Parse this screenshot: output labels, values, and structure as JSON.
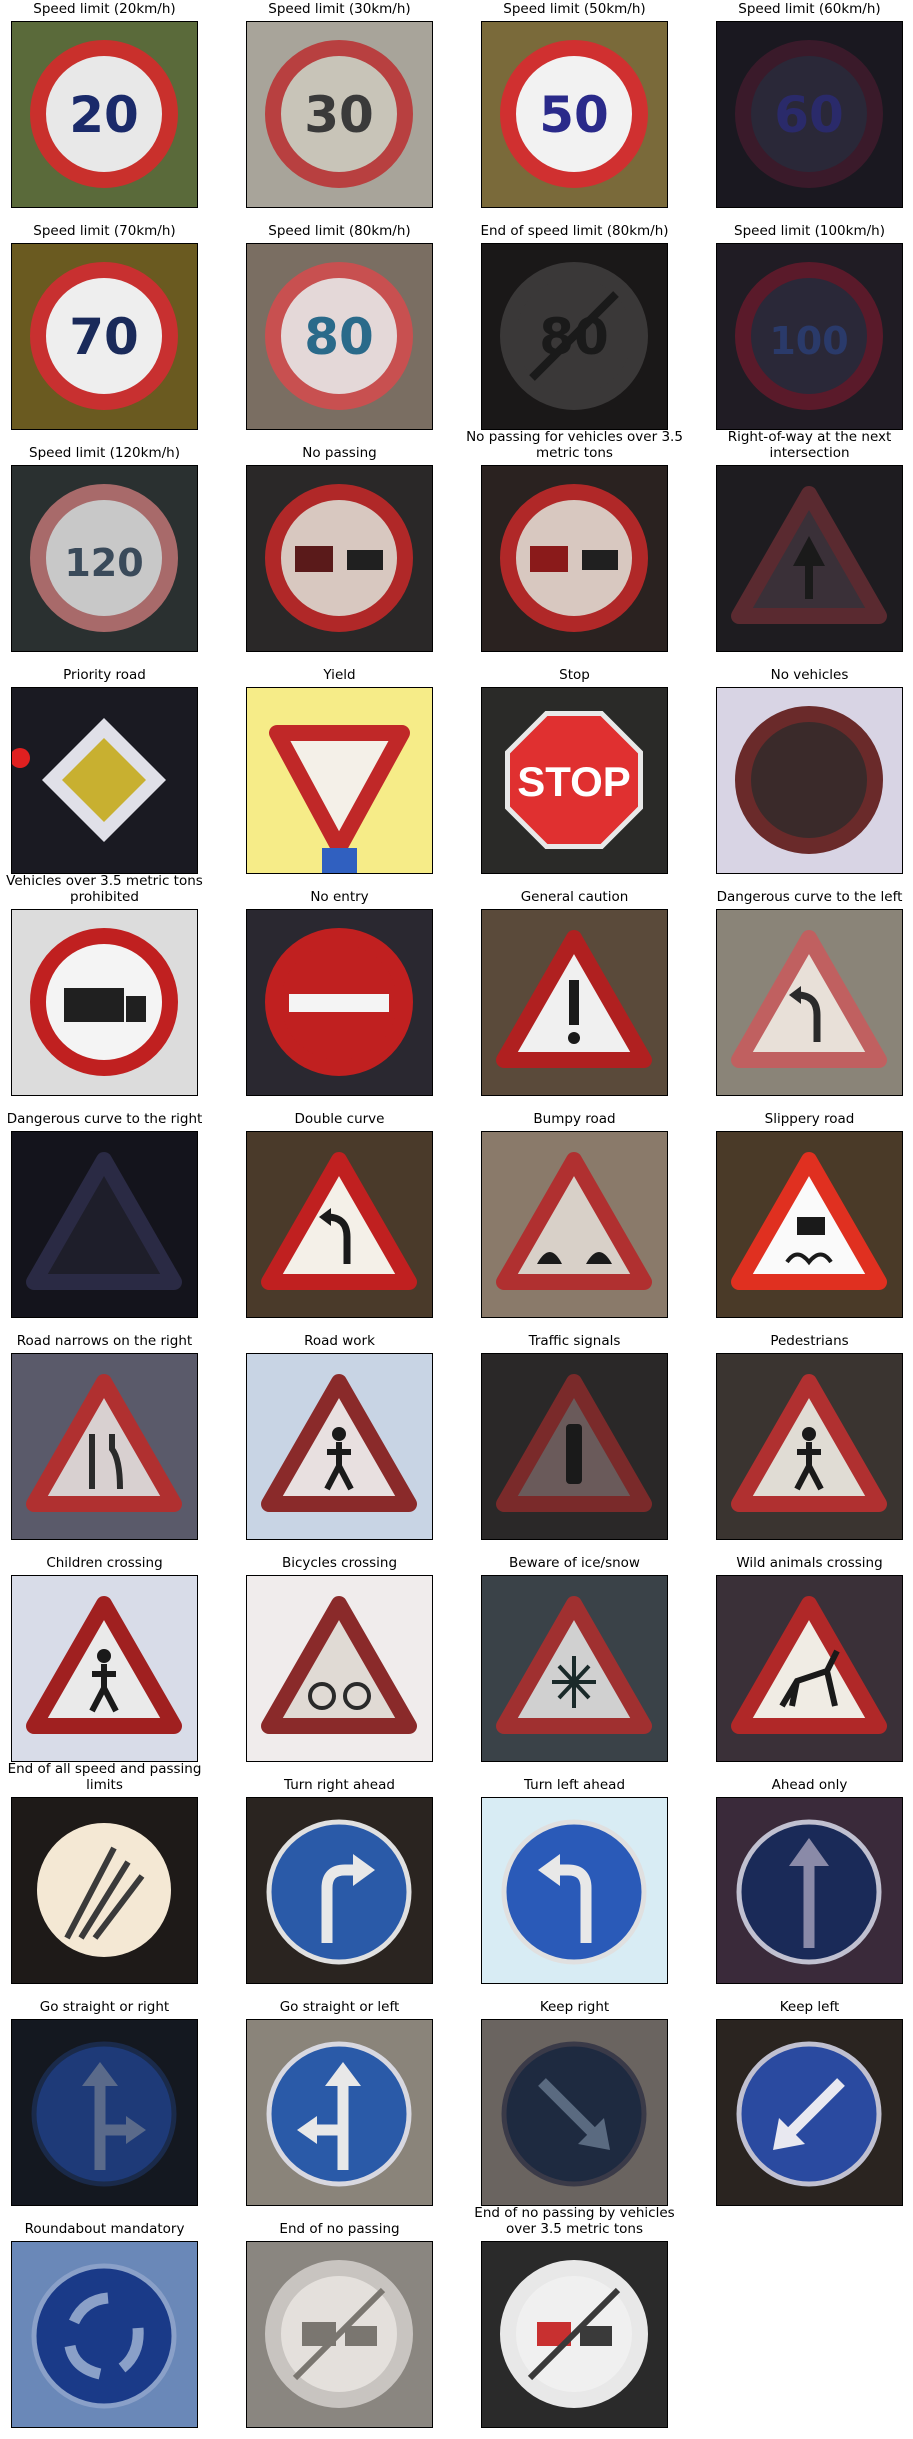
{
  "figure": {
    "panels": [
      {
        "title": "Speed limit (20km/h)",
        "sign": {
          "shape": "circle",
          "text": "20",
          "bg": "#5a6a3a",
          "ring": "#c9302c",
          "face": "#e8e8e8",
          "ink": "#1a2a6a"
        }
      },
      {
        "title": "Speed limit (30km/h)",
        "sign": {
          "shape": "circle",
          "text": "30",
          "bg": "#a8a49a",
          "ring": "#b84040",
          "face": "#c8c4b8",
          "ink": "#3a3a3a"
        }
      },
      {
        "title": "Speed limit (50km/h)",
        "sign": {
          "shape": "circle",
          "text": "50",
          "bg": "#7a6a3a",
          "ring": "#d03030",
          "face": "#f2f2f2",
          "ink": "#2a2a8a"
        }
      },
      {
        "title": "Speed limit (60km/h)",
        "sign": {
          "shape": "circle",
          "text": "60",
          "bg": "#1a1820",
          "ring": "#3a1a2a",
          "face": "#2a2838",
          "ink": "#2a2a6a"
        }
      },
      {
        "title": "Speed limit (70km/h)",
        "sign": {
          "shape": "circle",
          "text": "70",
          "bg": "#6a5a20",
          "ring": "#c83030",
          "face": "#eeeeee",
          "ink": "#1a2a5a"
        }
      },
      {
        "title": "Speed limit (80km/h)",
        "sign": {
          "shape": "circle",
          "text": "80",
          "bg": "#7a6e62",
          "ring": "#c85050",
          "face": "#e4d8d8",
          "ink": "#2a6a8a"
        }
      },
      {
        "title": "End of speed limit (80km/h)",
        "sign": {
          "shape": "circle-end",
          "text": "80",
          "bg": "#1a1818",
          "ring": "#3a3838",
          "face": "#3a3838",
          "ink": "#1a1a1a"
        }
      },
      {
        "title": "Speed limit (100km/h)",
        "sign": {
          "shape": "circle",
          "text": "100",
          "bg": "#201c24",
          "ring": "#5a1a2a",
          "face": "#2a2838",
          "ink": "#2a3a6a"
        }
      },
      {
        "title": "Speed limit (120km/h)",
        "sign": {
          "shape": "circle",
          "text": "120",
          "bg": "#2a3030",
          "ring": "#a86a6a",
          "face": "#c8c8c8",
          "ink": "#3a4a5a"
        }
      },
      {
        "title": "No passing",
        "sign": {
          "shape": "nopassing",
          "text": "",
          "bg": "#2a2828",
          "ring": "#b02828",
          "face": "#d8c8c0",
          "ink": "#5a1a1a"
        }
      },
      {
        "title": "No passing for vehicles over 3.5 metric tons",
        "sign": {
          "shape": "nopassing-truck",
          "text": "",
          "bg": "#2a2220",
          "ring": "#b02828",
          "face": "#d8c8c0",
          "ink": "#8a1a1a"
        }
      },
      {
        "title": "Right-of-way at the next intersection",
        "sign": {
          "shape": "triangle-arrow",
          "text": "",
          "bg": "#1e1c20",
          "ring": "#5a2a30",
          "face": "#3a3038",
          "ink": "#1a1a1a"
        }
      },
      {
        "title": "Priority road",
        "sign": {
          "shape": "diamond",
          "text": "",
          "bg": "#1a1a22",
          "ring": "#e0e0e8",
          "face": "#c8b030",
          "ink": "#e02020"
        }
      },
      {
        "title": "Yield",
        "sign": {
          "shape": "yield",
          "text": "",
          "bg": "#f6ec88",
          "ring": "#c02828",
          "face": "#f4f0e8",
          "ink": "#3060c0"
        }
      },
      {
        "title": "Stop",
        "sign": {
          "shape": "octagon",
          "text": "STOP",
          "bg": "#2a2a28",
          "ring": "#e8e8e8",
          "face": "#e03030",
          "ink": "#ffffff"
        }
      },
      {
        "title": "No vehicles",
        "sign": {
          "shape": "circle",
          "text": "",
          "bg": "#d8d4e4",
          "ring": "#6a2a2a",
          "face": "#3a2a2a",
          "ink": "#3a2a2a"
        }
      },
      {
        "title": "Vehicles over 3.5 metric tons prohibited",
        "sign": {
          "shape": "truck",
          "text": "",
          "bg": "#dcdcdc",
          "ring": "#c02020",
          "face": "#f4f4f4",
          "ink": "#202020"
        }
      },
      {
        "title": "No entry",
        "sign": {
          "shape": "noentry",
          "text": "",
          "bg": "#2a2830",
          "ring": "#c02020",
          "face": "#c02020",
          "ink": "#f4f4f4"
        }
      },
      {
        "title": "General caution",
        "sign": {
          "shape": "triangle-excl",
          "text": "!",
          "bg": "#5a4a3a",
          "ring": "#b02020",
          "face": "#f0f0f0",
          "ink": "#1a1a1a"
        }
      },
      {
        "title": "Dangerous curve to the left",
        "sign": {
          "shape": "triangle-curve-left",
          "text": "",
          "bg": "#8a8478",
          "ring": "#c06060",
          "face": "#e8e0d8",
          "ink": "#2a2a2a"
        }
      },
      {
        "title": "Dangerous curve to the right",
        "sign": {
          "shape": "triangle-dim",
          "text": "",
          "bg": "#14141c",
          "ring": "#2a2a44",
          "face": "#1e1e2a",
          "ink": "#1a1a1a"
        }
      },
      {
        "title": "Double curve",
        "sign": {
          "shape": "triangle-double",
          "text": "",
          "bg": "#4a3a2a",
          "ring": "#c02020",
          "face": "#f4f0e8",
          "ink": "#1a1a1a"
        }
      },
      {
        "title": "Bumpy road",
        "sign": {
          "shape": "triangle-bumpy",
          "text": "",
          "bg": "#8a7a6a",
          "ring": "#b03030",
          "face": "#d8d0c8",
          "ink": "#1a1a1a"
        }
      },
      {
        "title": "Slippery road",
        "sign": {
          "shape": "triangle-slip",
          "text": "",
          "bg": "#4a3a28",
          "ring": "#e03020",
          "face": "#fafafa",
          "ink": "#1a1a1a"
        }
      },
      {
        "title": "Road narrows on the right",
        "sign": {
          "shape": "triangle-narrow",
          "text": "",
          "bg": "#5a5a6a",
          "ring": "#b03030",
          "face": "#d8d0d0",
          "ink": "#2a2a2a"
        }
      },
      {
        "title": "Road work",
        "sign": {
          "shape": "triangle-work",
          "text": "",
          "bg": "#c8d4e4",
          "ring": "#8a2a2a",
          "face": "#e8e0e0",
          "ink": "#1a1a1a"
        }
      },
      {
        "title": "Traffic signals",
        "sign": {
          "shape": "triangle-signals",
          "text": "",
          "bg": "#2a2828",
          "ring": "#7a2a2a",
          "face": "#6a5a5a",
          "ink": "#1a1a1a"
        }
      },
      {
        "title": "Pedestrians",
        "sign": {
          "shape": "triangle-ped",
          "text": "",
          "bg": "#3a3430",
          "ring": "#b03030",
          "face": "#e0dcd4",
          "ink": "#1a1a1a"
        }
      },
      {
        "title": "Children crossing",
        "sign": {
          "shape": "triangle-children",
          "text": "",
          "bg": "#d8dce8",
          "ring": "#a02020",
          "face": "#eaeaea",
          "ink": "#1a1a1a"
        }
      },
      {
        "title": "Bicycles crossing",
        "sign": {
          "shape": "triangle-bike",
          "text": "",
          "bg": "#f0ecec",
          "ring": "#8a2a2a",
          "face": "#e0dad4",
          "ink": "#2a2a2a"
        }
      },
      {
        "title": "Beware of ice/snow",
        "sign": {
          "shape": "triangle-snow",
          "text": "",
          "bg": "#3a4248",
          "ring": "#a03030",
          "face": "#d0d0d0",
          "ink": "#1a2a2a"
        }
      },
      {
        "title": "Wild animals crossing",
        "sign": {
          "shape": "triangle-deer",
          "text": "",
          "bg": "#3a3038",
          "ring": "#b02828",
          "face": "#f0ece4",
          "ink": "#1a1a1a"
        }
      },
      {
        "title": "End of all speed and passing limits",
        "sign": {
          "shape": "end-all",
          "text": "",
          "bg": "#1e1a18",
          "ring": "#f4e8d4",
          "face": "#f4e8d4",
          "ink": "#3a3a3a"
        }
      },
      {
        "title": "Turn right ahead",
        "sign": {
          "shape": "blue-turn-right",
          "text": "",
          "bg": "#2a2420",
          "ring": "#e0e0e0",
          "face": "#2a5aa8",
          "ink": "#e8e8e8"
        }
      },
      {
        "title": "Turn left ahead",
        "sign": {
          "shape": "blue-turn-left",
          "text": "",
          "bg": "#d8ecf4",
          "ring": "#e0e0e0",
          "face": "#2a5ab8",
          "ink": "#e8e8e8"
        }
      },
      {
        "title": "Ahead only",
        "sign": {
          "shape": "blue-ahead",
          "text": "",
          "bg": "#3a2a3a",
          "ring": "#c0c0d0",
          "face": "#1a2a58",
          "ink": "#8a8aa8"
        }
      },
      {
        "title": "Go straight or right",
        "sign": {
          "shape": "blue-straight-right",
          "text": "",
          "bg": "#141820",
          "ring": "#1a2a4a",
          "face": "#1e3a78",
          "ink": "#5a6a8a"
        }
      },
      {
        "title": "Go straight or left",
        "sign": {
          "shape": "blue-straight-left",
          "text": "",
          "bg": "#8a847a",
          "ring": "#d8d8e0",
          "face": "#2a5aa8",
          "ink": "#e8e8e8"
        }
      },
      {
        "title": "Keep right",
        "sign": {
          "shape": "blue-keep-right",
          "text": "",
          "bg": "#6a6460",
          "ring": "#3a3a48",
          "face": "#1e2a40",
          "ink": "#5a6a80"
        }
      },
      {
        "title": "Keep left",
        "sign": {
          "shape": "blue-keep-left",
          "text": "",
          "bg": "#2a2420",
          "ring": "#c0c0d0",
          "face": "#2a4aa0",
          "ink": "#e8e8f0"
        }
      },
      {
        "title": "Roundabout mandatory",
        "sign": {
          "shape": "blue-roundabout",
          "text": "",
          "bg": "#6a88b8",
          "ring": "#8aa0c8",
          "face": "#1a3a88",
          "ink": "#8aa0c8"
        }
      },
      {
        "title": "End of no passing",
        "sign": {
          "shape": "end-nopassing",
          "text": "",
          "bg": "#8a8680",
          "ring": "#c8c4c0",
          "face": "#e4e0dc",
          "ink": "#7a7670"
        }
      },
      {
        "title": "End of no passing by vehicles over 3.5 metric tons",
        "sign": {
          "shape": "end-nopassing-truck",
          "text": "",
          "bg": "#2a2a2a",
          "ring": "#e8e8e8",
          "face": "#f0f0f0",
          "ink": "#3a3a3a"
        }
      }
    ]
  }
}
